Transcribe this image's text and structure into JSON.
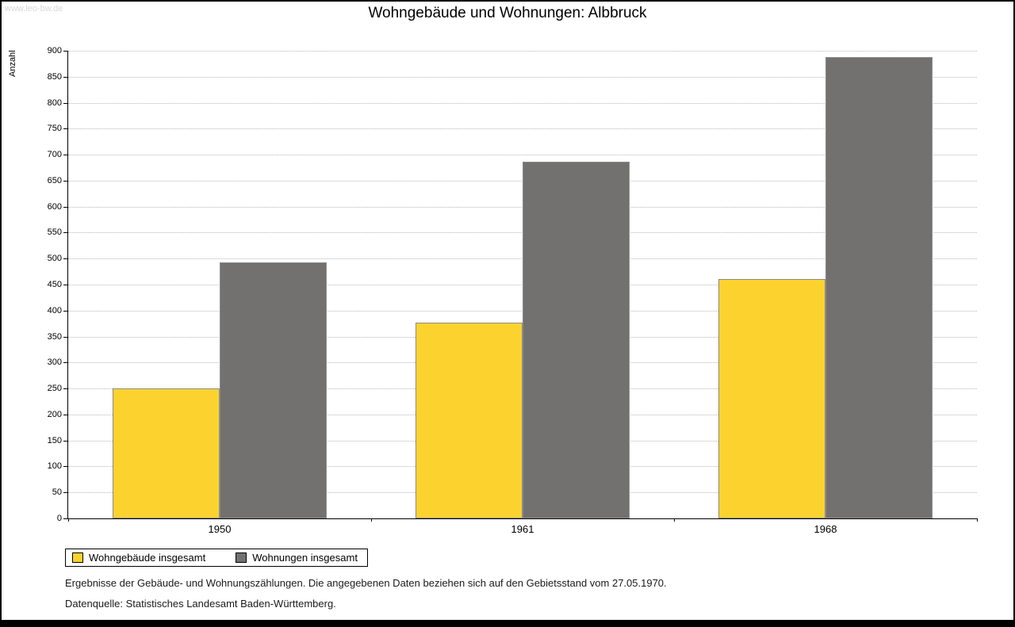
{
  "watermark": "www.leo-bw.de",
  "title": "Wohngebäude und Wohnungen: Albbruck",
  "chart_data": {
    "type": "bar",
    "title": "Wohngebäude und Wohnungen: Albbruck",
    "categories": [
      "1950",
      "1961",
      "1968"
    ],
    "series": [
      {
        "name": "Wohngebäude insgesamt",
        "color": "#FCD32E",
        "values": [
          250,
          377,
          461
        ]
      },
      {
        "name": "Wohnungen insgesamt",
        "color": "#737070",
        "values": [
          493,
          687,
          888
        ]
      }
    ],
    "xlabel": "",
    "ylabel": "Anzahl",
    "ylim": [
      0,
      900
    ],
    "ytick_step": 50,
    "grid": "horizontal-dotted",
    "legend_position": "bottom-left"
  },
  "footnotes": {
    "line1": "Ergebnisse der Gebäude- und Wohnungszählungen. Die angegebenen Daten beziehen sich auf den Gebietsstand vom 27.05.1970.",
    "line2": "Datenquelle: Statistisches Landesamt Baden-Württemberg."
  }
}
